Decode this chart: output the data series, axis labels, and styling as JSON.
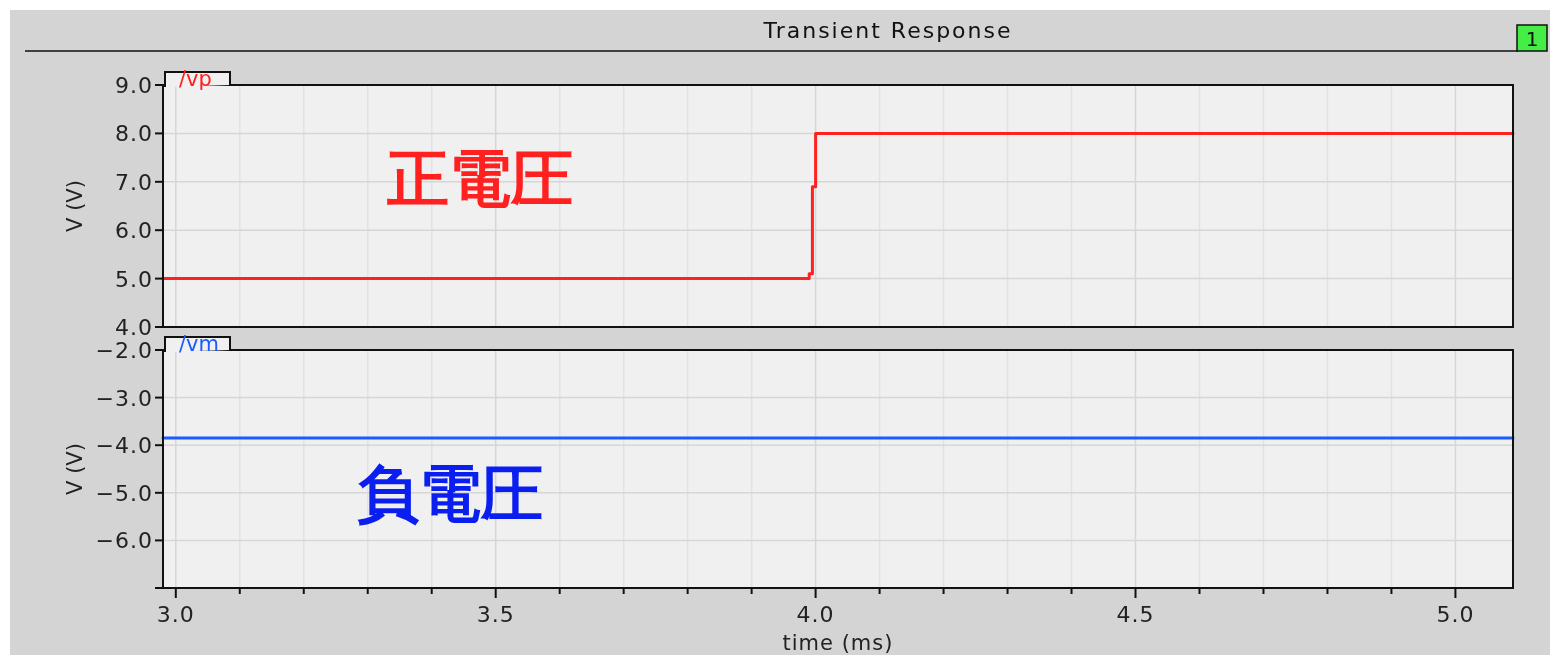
{
  "chart_data": [
    {
      "type": "line",
      "title": "Transient Response",
      "ylabel": "V (V)",
      "annotations": [
        "正電圧",
        "1"
      ],
      "legend": "top left",
      "grid": true,
      "tick_labels": "y",
      "marker": "none",
      "line_style": "solid",
      "xlim": [
        2.98,
        5.09
      ],
      "ylim": [
        4,
        9
      ],
      "xticks": [
        {
          "value": 3.0,
          "label": null
        },
        {
          "value": 3.1,
          "label": null
        },
        {
          "value": 3.2,
          "label": null
        },
        {
          "value": 3.3,
          "label": null
        },
        {
          "value": 3.4,
          "label": null
        },
        {
          "value": 3.5,
          "label": null
        },
        {
          "value": 3.6,
          "label": null
        },
        {
          "value": 3.7,
          "label": null
        },
        {
          "value": 3.8,
          "label": null
        },
        {
          "value": 3.9,
          "label": null
        },
        {
          "value": 4.0,
          "label": null
        },
        {
          "value": 4.1,
          "label": null
        },
        {
          "value": 4.2,
          "label": null
        },
        {
          "value": 4.3,
          "label": null
        },
        {
          "value": 4.4,
          "label": null
        },
        {
          "value": 4.5,
          "label": null
        },
        {
          "value": 4.6,
          "label": null
        },
        {
          "value": 4.7,
          "label": null
        },
        {
          "value": 4.8,
          "label": null
        },
        {
          "value": 4.9,
          "label": null
        },
        {
          "value": 5.0,
          "label": null
        }
      ],
      "yticks": [
        {
          "value": 4,
          "label": "4.0"
        },
        {
          "value": 5,
          "label": "5.0"
        },
        {
          "value": 6,
          "label": "6.0"
        },
        {
          "value": 7,
          "label": "7.0"
        },
        {
          "value": 8,
          "label": "8.0"
        },
        {
          "value": 9,
          "label": "9.0"
        }
      ],
      "series": [
        {
          "name": "/vp",
          "color": "#ff2020",
          "x": [
            2.98,
            3.99,
            3.99,
            3.995,
            3.995,
            4.0,
            4.0,
            5.09
          ],
          "values": [
            5.0,
            5.0,
            5.1,
            5.1,
            6.9,
            6.9,
            8.0,
            8.0
          ]
        }
      ]
    },
    {
      "type": "line",
      "xlabel": "time (ms)",
      "ylabel": "V (V)",
      "annotations": [
        "負電圧"
      ],
      "legend": "top left",
      "grid": true,
      "marker": "none",
      "line_style": "solid",
      "xlim": [
        2.98,
        5.09
      ],
      "ylim": [
        -7,
        -2
      ],
      "xticks": [
        {
          "value": 3.0,
          "label": "3.0"
        },
        {
          "value": 3.1,
          "label": null
        },
        {
          "value": 3.2,
          "label": null
        },
        {
          "value": 3.3,
          "label": null
        },
        {
          "value": 3.4,
          "label": null
        },
        {
          "value": 3.5,
          "label": "3.5"
        },
        {
          "value": 3.6,
          "label": null
        },
        {
          "value": 3.7,
          "label": null
        },
        {
          "value": 3.8,
          "label": null
        },
        {
          "value": 3.9,
          "label": null
        },
        {
          "value": 4.0,
          "label": "4.0"
        },
        {
          "value": 4.1,
          "label": null
        },
        {
          "value": 4.2,
          "label": null
        },
        {
          "value": 4.3,
          "label": null
        },
        {
          "value": 4.4,
          "label": null
        },
        {
          "value": 4.5,
          "label": "4.5"
        },
        {
          "value": 4.6,
          "label": null
        },
        {
          "value": 4.7,
          "label": null
        },
        {
          "value": 4.8,
          "label": null
        },
        {
          "value": 4.9,
          "label": null
        },
        {
          "value": 5.0,
          "label": "5.0"
        }
      ],
      "yticks": [
        {
          "value": -2,
          "label": "−2.0"
        },
        {
          "value": -3,
          "label": "−3.0"
        },
        {
          "value": -4,
          "label": "−4.0"
        },
        {
          "value": -5,
          "label": "−5.0"
        },
        {
          "value": -6,
          "label": "−6.0"
        },
        {
          "value": -7,
          "label": null
        }
      ],
      "series": [
        {
          "name": "/vm",
          "color": "#1a5cff",
          "x": [
            2.98,
            4.0,
            4.5,
            5.09
          ],
          "values": [
            -3.85,
            -3.85,
            -3.85,
            -3.85
          ]
        }
      ]
    }
  ]
}
